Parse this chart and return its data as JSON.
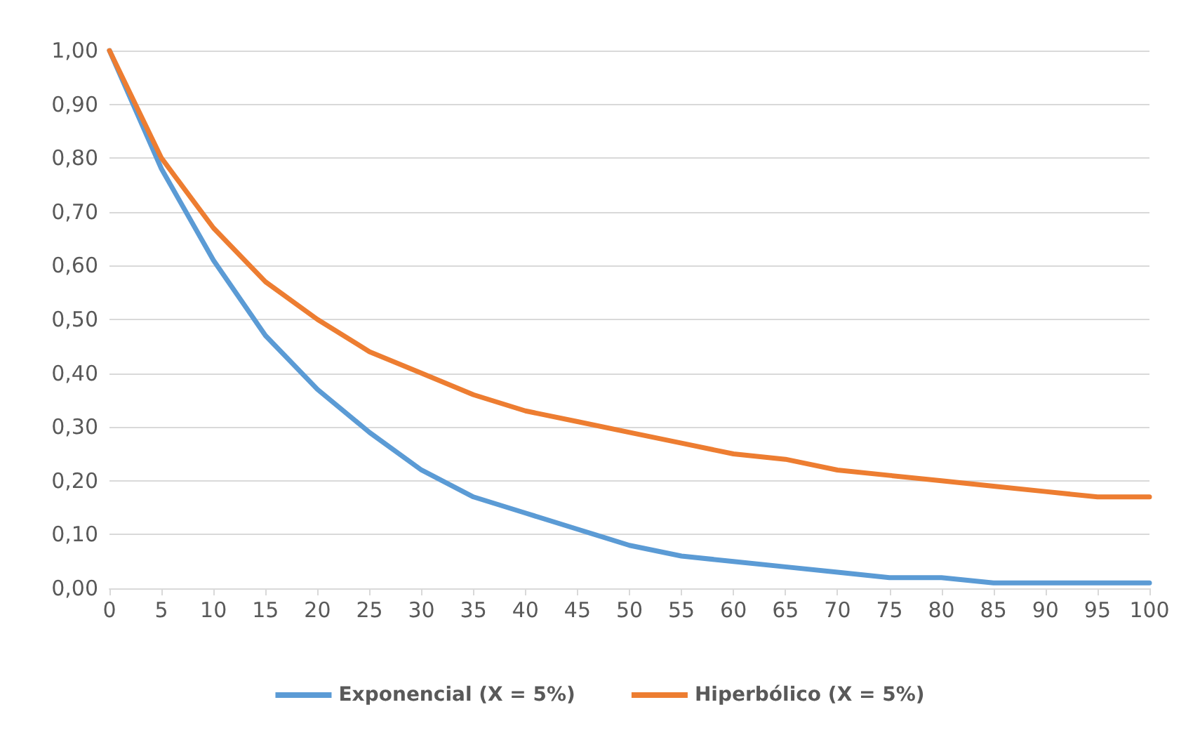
{
  "chart_data": {
    "type": "line",
    "x": [
      0,
      5,
      10,
      15,
      20,
      25,
      30,
      35,
      40,
      45,
      50,
      55,
      60,
      65,
      70,
      75,
      80,
      85,
      90,
      95,
      100
    ],
    "series": [
      {
        "name": "Exponencial (X = 5%)",
        "color": "#5b9bd5",
        "values": [
          1.0,
          0.78,
          0.61,
          0.47,
          0.37,
          0.29,
          0.22,
          0.17,
          0.14,
          0.11,
          0.08,
          0.06,
          0.05,
          0.04,
          0.03,
          0.02,
          0.02,
          0.01,
          0.01,
          0.01,
          0.01
        ]
      },
      {
        "name": "Hiperbólico (X = 5%)",
        "color": "#ed7d31",
        "values": [
          1.0,
          0.8,
          0.67,
          0.57,
          0.5,
          0.44,
          0.4,
          0.36,
          0.33,
          0.31,
          0.29,
          0.27,
          0.25,
          0.24,
          0.22,
          0.21,
          0.2,
          0.19,
          0.18,
          0.17,
          0.17
        ]
      }
    ],
    "xlim": [
      0,
      100
    ],
    "xticks": [
      0,
      5,
      10,
      15,
      20,
      25,
      30,
      35,
      40,
      45,
      50,
      55,
      60,
      65,
      70,
      75,
      80,
      85,
      90,
      95,
      100
    ],
    "ylim": [
      0,
      1
    ],
    "yticks": [
      {
        "value": 0,
        "label": "0,00"
      },
      {
        "value": 0.1,
        "label": "0,10"
      },
      {
        "value": 0.2,
        "label": "0,20"
      },
      {
        "value": 0.3,
        "label": "0,30"
      },
      {
        "value": 0.4,
        "label": "0,40"
      },
      {
        "value": 0.5,
        "label": "0,50"
      },
      {
        "value": 0.6,
        "label": "0,60"
      },
      {
        "value": 0.7,
        "label": "0,70"
      },
      {
        "value": 0.8,
        "label": "0,80"
      },
      {
        "value": 0.9,
        "label": "0,90"
      },
      {
        "value": 1,
        "label": "1,00"
      }
    ],
    "grid": "y",
    "legend": "bottom",
    "marker": "none",
    "line_style": "solid"
  }
}
